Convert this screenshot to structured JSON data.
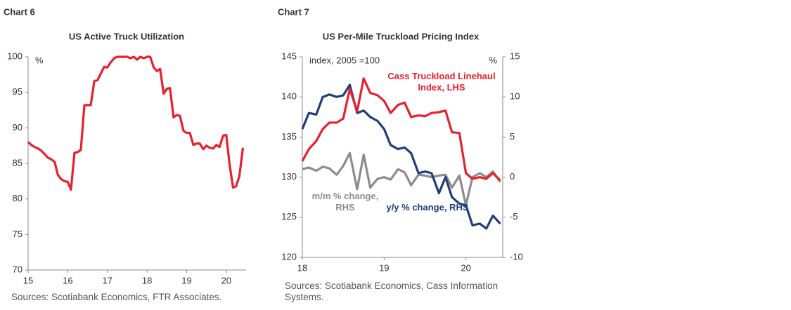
{
  "chart_data": [
    {
      "type": "line",
      "heading": "Chart 6",
      "title": "US Active Truck Utilization",
      "y_unit": "%",
      "source": "Sources: Scotiabank Economics, FTR Associates.",
      "x": [
        15,
        15.08,
        15.17,
        15.25,
        15.33,
        15.42,
        15.5,
        15.58,
        15.67,
        15.75,
        15.83,
        15.92,
        16,
        16.08,
        16.17,
        16.25,
        16.33,
        16.42,
        16.5,
        16.58,
        16.67,
        16.75,
        16.83,
        16.92,
        17,
        17.08,
        17.17,
        17.25,
        17.33,
        17.42,
        17.5,
        17.58,
        17.67,
        17.75,
        17.83,
        17.92,
        18,
        18.08,
        18.17,
        18.25,
        18.33,
        18.42,
        18.5,
        18.58,
        18.67,
        18.75,
        18.83,
        18.92,
        19,
        19.08,
        19.17,
        19.25,
        19.33,
        19.42,
        19.5,
        19.58,
        19.67,
        19.75,
        19.83,
        19.92,
        20,
        20.08,
        20.17,
        20.25,
        20.33,
        20.42
      ],
      "series": [
        {
          "color": "#e8202e",
          "values": [
            88,
            87.6,
            87.3,
            87.1,
            86.8,
            86.3,
            85.8,
            85.6,
            85.2,
            83.4,
            82.8,
            82.5,
            82.4,
            81.3,
            86.5,
            86.6,
            86.9,
            93.2,
            93.2,
            93.2,
            96.6,
            96.7,
            97.6,
            98.6,
            98.5,
            99.2,
            99.8,
            100,
            100,
            100,
            100,
            99.8,
            100,
            99.6,
            100,
            99.8,
            100,
            100,
            98.5,
            98,
            98.3,
            94.8,
            95.5,
            95.6,
            91.5,
            91.8,
            91.7,
            89.6,
            89.3,
            89.3,
            87.6,
            87.8,
            87.8,
            87,
            87.5,
            87.2,
            87.1,
            87.6,
            87.3,
            88.9,
            89,
            85,
            81.6,
            81.8,
            83.2,
            87.2
          ]
        }
      ],
      "xlim": [
        15,
        20.5
      ],
      "xticks": [
        15,
        16,
        17,
        18,
        19,
        20
      ],
      "ylim": [
        70,
        100
      ],
      "yticks": [
        70,
        75,
        80,
        85,
        90,
        95,
        100
      ]
    },
    {
      "type": "line",
      "heading": "Chart 7",
      "title": "US Per-Mile Truckload Pricing Index",
      "y_unit": "index, 2005 =100",
      "y2_unit": "%",
      "source": "Sources: Scotiabank Economics, Cass Information Systems.",
      "x": [
        18,
        18.08,
        18.17,
        18.25,
        18.33,
        18.42,
        18.5,
        18.58,
        18.67,
        18.75,
        18.83,
        18.92,
        19,
        19.08,
        19.17,
        19.25,
        19.33,
        19.42,
        19.5,
        19.58,
        19.67,
        19.75,
        19.83,
        19.92,
        20,
        20.08,
        20.17,
        20.25,
        20.33,
        20.42
      ],
      "series": [
        {
          "name": "m/m % change, RHS",
          "color": "#8c8c8c",
          "axis": "y2",
          "values": [
            1.0,
            1.2,
            0.8,
            1.3,
            1.1,
            0.3,
            1.4,
            3.0,
            -1.5,
            2.8,
            -1.3,
            -0.2,
            0.0,
            -0.3,
            1.0,
            0.6,
            -1.0,
            0.3,
            0.2,
            0.0,
            0.2,
            0.3,
            -1.3,
            0.2,
            -3.5,
            0.0,
            0.5,
            0.0,
            0.7,
            -0.6
          ]
        },
        {
          "name": "y/y % change, RHS",
          "color": "#1f3d7a",
          "axis": "y2",
          "values": [
            6.0,
            8.0,
            7.8,
            10.0,
            10.3,
            10.0,
            10.2,
            11.5,
            8.0,
            8.3,
            7.5,
            7.0,
            6.0,
            4.0,
            3.5,
            3.7,
            3.0,
            0.5,
            0.7,
            0.5,
            -2.0,
            0.0,
            -2.5,
            -3.3,
            -3.5,
            -6.0,
            -5.8,
            -6.4,
            -4.8,
            -5.8
          ]
        },
        {
          "name": "Cass Truckload Linehaul Index, LHS",
          "color": "#e8202e",
          "values": [
            132,
            133.5,
            134.5,
            136,
            136.8,
            136.8,
            137.3,
            141,
            138.2,
            142.3,
            140.5,
            140.2,
            139.5,
            138.0,
            139.0,
            139.3,
            137.5,
            137.7,
            137.6,
            138.0,
            138.1,
            138.3,
            135.6,
            135.5,
            130.5,
            129.8,
            130.0,
            129.8,
            130.5,
            129.6
          ]
        }
      ],
      "xlim": [
        18,
        20.45
      ],
      "xticks": [
        18,
        19,
        20
      ],
      "ylim": [
        120,
        145
      ],
      "yticks": [
        120,
        125,
        130,
        135,
        140,
        145
      ],
      "y2lim": [
        -10,
        15
      ],
      "y2ticks": [
        -10,
        -5,
        0,
        5,
        10,
        15
      ]
    }
  ]
}
